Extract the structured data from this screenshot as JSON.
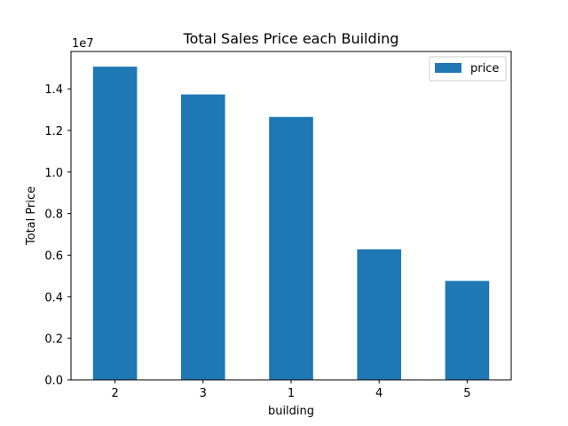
{
  "chart_data": {
    "type": "bar",
    "title": "Total Sales Price each Building",
    "xlabel": "building",
    "ylabel": "Total Price",
    "y_offset_label": "1e7",
    "categories": [
      "2",
      "3",
      "1",
      "4",
      "5"
    ],
    "series": [
      {
        "name": "price",
        "values": [
          15070000,
          13730000,
          12650000,
          6280000,
          4760000
        ],
        "color": "#1f77b4"
      }
    ],
    "ylim": [
      0,
      15800000
    ],
    "yticks": [
      0,
      2000000,
      4000000,
      6000000,
      8000000,
      10000000,
      12000000,
      14000000
    ],
    "ytick_labels": [
      "0.0",
      "0.2",
      "0.4",
      "0.6",
      "0.8",
      "1.0",
      "1.2",
      "1.4"
    ],
    "grid": false,
    "legend_position": "top-right"
  }
}
